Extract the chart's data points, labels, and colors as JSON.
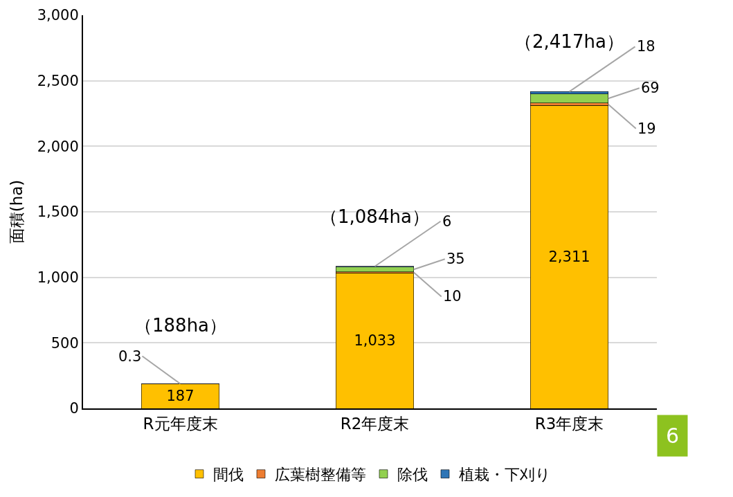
{
  "chart_data": {
    "type": "bar",
    "stacked": true,
    "ylabel": "面積(ha)",
    "categories": [
      "R元年度末",
      "R2年度末",
      "R3年度末"
    ],
    "series": [
      {
        "name": "間伐",
        "color": "#ffc000",
        "values": [
          187,
          1033,
          2311
        ],
        "value_labels": [
          "187",
          "1,033",
          "2,311"
        ]
      },
      {
        "name": "広葉樹整備等",
        "color": "#ed7d31",
        "values": [
          null,
          10,
          19
        ],
        "value_labels": [
          null,
          "10",
          "19"
        ]
      },
      {
        "name": "除伐",
        "color": "#92d050",
        "values": [
          null,
          35,
          69
        ],
        "value_labels": [
          null,
          "35",
          "69"
        ]
      },
      {
        "name": "植栽・下刈り",
        "color": "#2e75b6",
        "values": [
          0.3,
          6,
          18
        ],
        "value_labels": [
          "0.3",
          "6",
          "18"
        ]
      }
    ],
    "totals": [
      "（188ha）",
      "（1,084ha）",
      "（2,417ha）"
    ],
    "ylim": [
      0,
      3000
    ],
    "yticks": [
      0,
      500,
      {
        "value": 1000,
        "label": "1,000"
      },
      {
        "value": 1500,
        "label": "1,500"
      },
      {
        "value": 2000,
        "label": "2,000"
      },
      {
        "value": 2500,
        "label": "2,500"
      },
      {
        "value": 3000,
        "label": "3,000"
      }
    ],
    "grid": "y",
    "legend": "bottom",
    "annotations": [
      "6"
    ]
  }
}
